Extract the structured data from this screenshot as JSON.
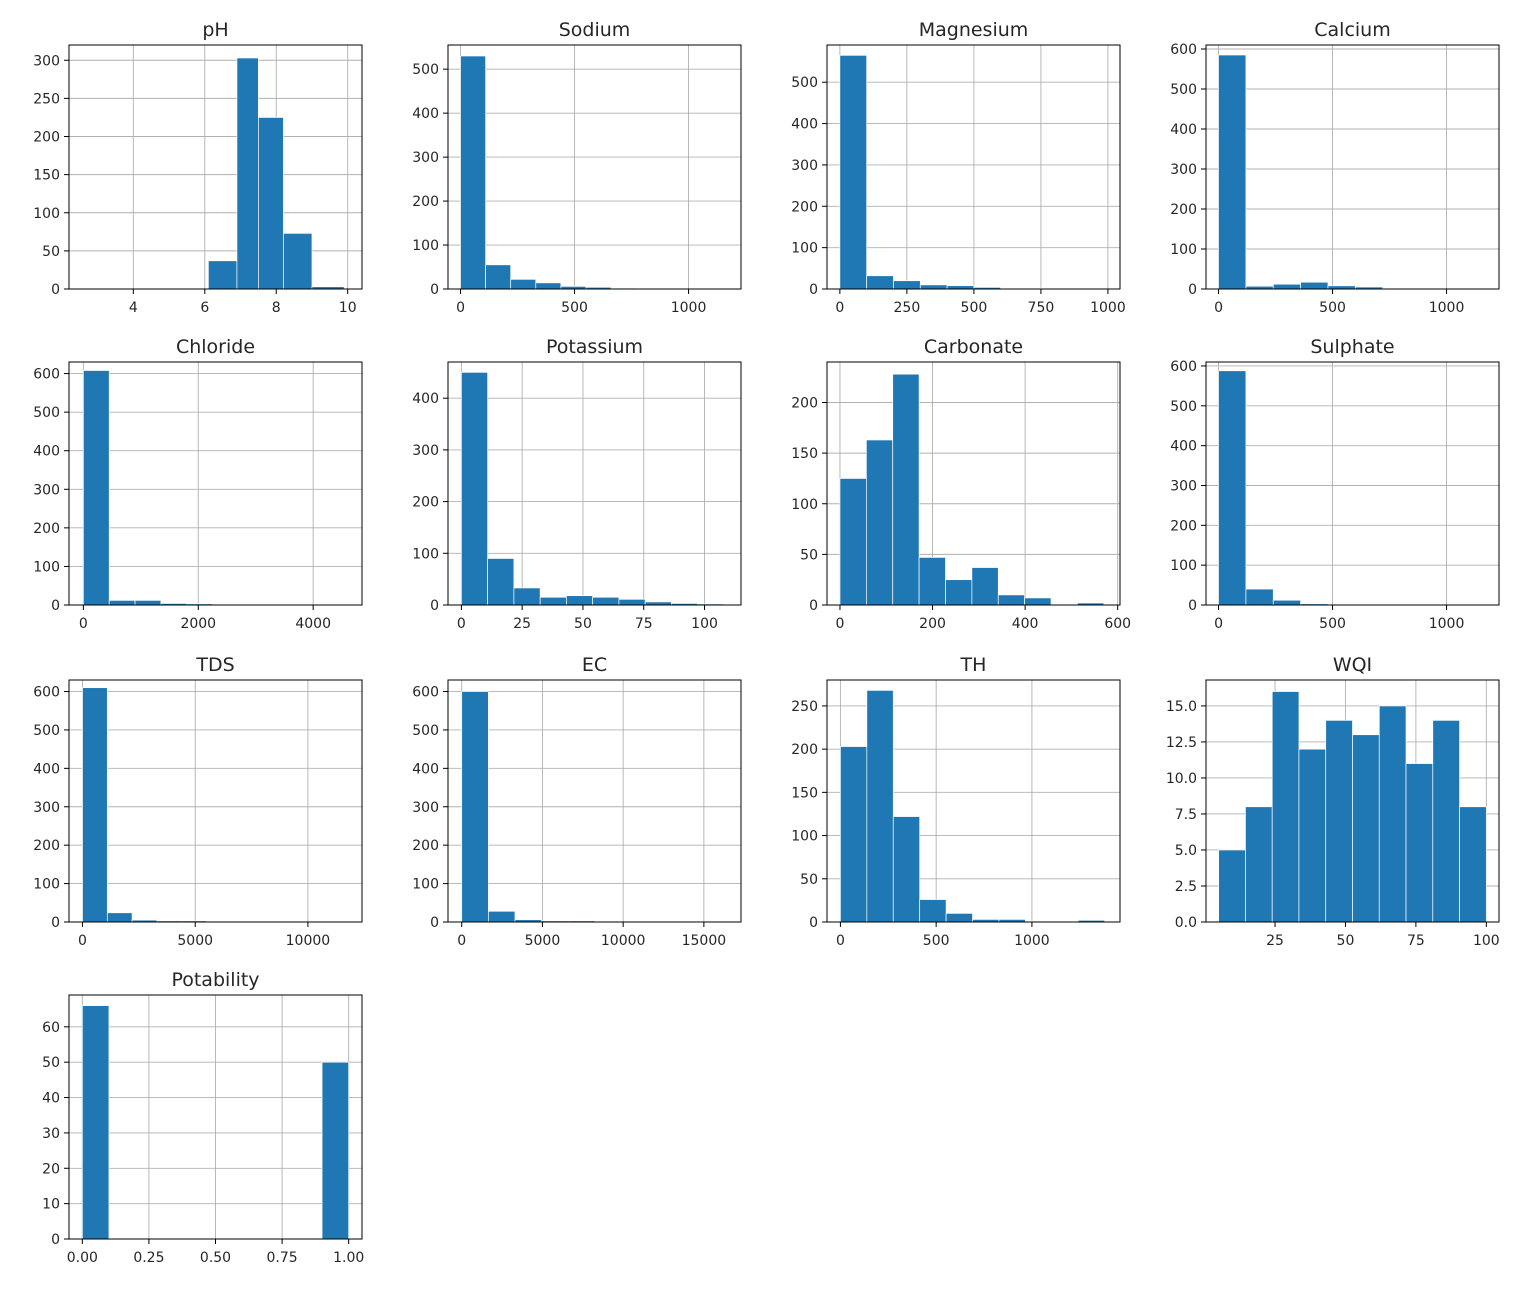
{
  "figure": {
    "bar_color": "#1f77b4",
    "edge_color": "#ffffff",
    "grid_color": "#b0b0b0",
    "frame_color": "#000000",
    "grid": true,
    "layout": "4 columns x 4 rows"
  },
  "chart_data": [
    {
      "type": "bar",
      "title": "pH",
      "bins": [
        [
          6.1,
          6.9
        ],
        [
          6.9,
          7.5
        ],
        [
          7.5,
          8.2
        ],
        [
          8.2,
          9.0
        ],
        [
          9.0,
          9.9
        ]
      ],
      "values": [
        37,
        303,
        225,
        73,
        3
      ],
      "xlim": [
        2.2,
        10.4
      ],
      "ylim": [
        0,
        320
      ],
      "xticks": [
        4,
        6,
        8,
        10
      ],
      "xtick_labels": [
        "4",
        "6",
        "8",
        "10"
      ],
      "yticks": [
        0,
        50,
        100,
        150,
        200,
        250,
        300
      ],
      "ytick_labels": [
        "0",
        "50",
        "100",
        "150",
        "200",
        "250",
        "300"
      ]
    },
    {
      "type": "bar",
      "title": "Sodium",
      "bins": [
        [
          0,
          110
        ],
        [
          110,
          220
        ],
        [
          220,
          330
        ],
        [
          330,
          440
        ],
        [
          440,
          550
        ],
        [
          550,
          660
        ],
        [
          660,
          770
        ],
        [
          770,
          880
        ]
      ],
      "values": [
        530,
        55,
        22,
        14,
        6,
        4,
        2,
        1
      ],
      "xlim": [
        -55,
        1230
      ],
      "ylim": [
        0,
        555
      ],
      "xticks": [
        0,
        500,
        1000
      ],
      "xtick_labels": [
        "0",
        "500",
        "1000"
      ],
      "yticks": [
        0,
        100,
        200,
        300,
        400,
        500
      ],
      "ytick_labels": [
        "0",
        "100",
        "200",
        "300",
        "400",
        "500"
      ]
    },
    {
      "type": "bar",
      "title": "Magnesium",
      "bins": [
        [
          0,
          100
        ],
        [
          100,
          200
        ],
        [
          200,
          300
        ],
        [
          300,
          400
        ],
        [
          400,
          500
        ],
        [
          500,
          600
        ],
        [
          600,
          700
        ],
        [
          700,
          800
        ]
      ],
      "values": [
        565,
        32,
        20,
        10,
        8,
        4,
        2,
        2
      ],
      "xlim": [
        -48,
        1045
      ],
      "ylim": [
        0,
        590
      ],
      "xticks": [
        0,
        250,
        500,
        750,
        1000
      ],
      "xtick_labels": [
        "0",
        "250",
        "500",
        "750",
        "1000"
      ],
      "yticks": [
        0,
        100,
        200,
        300,
        400,
        500
      ],
      "ytick_labels": [
        "0",
        "100",
        "200",
        "300",
        "400",
        "500"
      ]
    },
    {
      "type": "bar",
      "title": "Calcium",
      "bins": [
        [
          0,
          120
        ],
        [
          120,
          240
        ],
        [
          240,
          360
        ],
        [
          360,
          480
        ],
        [
          480,
          600
        ],
        [
          600,
          720
        ],
        [
          720,
          820
        ]
      ],
      "values": [
        585,
        7,
        12,
        17,
        8,
        5,
        2
      ],
      "xlim": [
        -55,
        1230
      ],
      "ylim": [
        0,
        610
      ],
      "xticks": [
        0,
        500,
        1000
      ],
      "xtick_labels": [
        "0",
        "500",
        "1000"
      ],
      "yticks": [
        0,
        100,
        200,
        300,
        400,
        500,
        600
      ],
      "ytick_labels": [
        "0",
        "100",
        "200",
        "300",
        "400",
        "500",
        "600"
      ]
    },
    {
      "type": "bar",
      "title": "Chloride",
      "bins": [
        [
          0,
          450
        ],
        [
          450,
          900
        ],
        [
          900,
          1350
        ],
        [
          1350,
          1800
        ],
        [
          1800,
          2250
        ]
      ],
      "values": [
        608,
        12,
        12,
        4,
        3
      ],
      "xlim": [
        -250,
        4850
      ],
      "ylim": [
        0,
        630
      ],
      "xticks": [
        0,
        2000,
        4000
      ],
      "xtick_labels": [
        "0",
        "2000",
        "4000"
      ],
      "yticks": [
        0,
        100,
        200,
        300,
        400,
        500,
        600
      ],
      "ytick_labels": [
        "0",
        "100",
        "200",
        "300",
        "400",
        "500",
        "600"
      ]
    },
    {
      "type": "bar",
      "title": "Potassium",
      "bins": [
        [
          0,
          10.8
        ],
        [
          10.8,
          21.6
        ],
        [
          21.6,
          32.4
        ],
        [
          32.4,
          43.2
        ],
        [
          43.2,
          54
        ],
        [
          54,
          64.8
        ],
        [
          64.8,
          75.6
        ],
        [
          75.6,
          86.4
        ],
        [
          86.4,
          97.2
        ],
        [
          97.2,
          108
        ]
      ],
      "values": [
        450,
        90,
        33,
        15,
        18,
        15,
        11,
        6,
        3,
        2
      ],
      "xlim": [
        -5.5,
        115
      ],
      "ylim": [
        0,
        470
      ],
      "xticks": [
        0,
        25,
        50,
        75,
        100
      ],
      "xtick_labels": [
        "0",
        "25",
        "50",
        "75",
        "100"
      ],
      "yticks": [
        0,
        100,
        200,
        300,
        400
      ],
      "ytick_labels": [
        "0",
        "100",
        "200",
        "300",
        "400"
      ]
    },
    {
      "type": "bar",
      "title": "Carbonate",
      "bins": [
        [
          0,
          57
        ],
        [
          57,
          114
        ],
        [
          114,
          171
        ],
        [
          171,
          228
        ],
        [
          228,
          285
        ],
        [
          285,
          342
        ],
        [
          342,
          399
        ],
        [
          399,
          456
        ],
        [
          456,
          513
        ],
        [
          513,
          570
        ]
      ],
      "values": [
        125,
        163,
        228,
        47,
        25,
        37,
        10,
        7,
        0,
        2
      ],
      "xlim": [
        -28,
        605
      ],
      "ylim": [
        0,
        240
      ],
      "xticks": [
        0,
        200,
        400,
        600
      ],
      "xtick_labels": [
        "0",
        "200",
        "400",
        "600"
      ],
      "yticks": [
        0,
        50,
        100,
        150,
        200
      ],
      "ytick_labels": [
        "0",
        "50",
        "100",
        "150",
        "200"
      ]
    },
    {
      "type": "bar",
      "title": "Sulphate",
      "bins": [
        [
          0,
          120
        ],
        [
          120,
          240
        ],
        [
          240,
          360
        ],
        [
          360,
          480
        ]
      ],
      "values": [
        588,
        40,
        12,
        3
      ],
      "xlim": [
        -55,
        1230
      ],
      "ylim": [
        0,
        610
      ],
      "xticks": [
        0,
        500,
        1000
      ],
      "xtick_labels": [
        "0",
        "500",
        "1000"
      ],
      "yticks": [
        0,
        100,
        200,
        300,
        400,
        500,
        600
      ],
      "ytick_labels": [
        "0",
        "100",
        "200",
        "300",
        "400",
        "500",
        "600"
      ]
    },
    {
      "type": "bar",
      "title": "TDS",
      "bins": [
        [
          0,
          1100
        ],
        [
          1100,
          2200
        ],
        [
          2200,
          3300
        ],
        [
          3300,
          4400
        ],
        [
          4400,
          5500
        ],
        [
          5500,
          6600
        ]
      ],
      "values": [
        610,
        24,
        5,
        3,
        3,
        2
      ],
      "xlim": [
        -600,
        12400
      ],
      "ylim": [
        0,
        630
      ],
      "xticks": [
        0,
        5000,
        10000
      ],
      "xtick_labels": [
        "0",
        "5000",
        "10000"
      ],
      "yticks": [
        0,
        100,
        200,
        300,
        400,
        500,
        600
      ],
      "ytick_labels": [
        "0",
        "100",
        "200",
        "300",
        "400",
        "500",
        "600"
      ]
    },
    {
      "type": "bar",
      "title": "EC",
      "bins": [
        [
          0,
          1650
        ],
        [
          1650,
          3300
        ],
        [
          3300,
          4950
        ],
        [
          4950,
          6600
        ],
        [
          6600,
          8250
        ]
      ],
      "values": [
        600,
        28,
        6,
        3,
        3
      ],
      "xlim": [
        -850,
        17300
      ],
      "ylim": [
        0,
        630
      ],
      "xticks": [
        0,
        5000,
        10000,
        15000
      ],
      "xtick_labels": [
        "0",
        "5000",
        "10000",
        "15000"
      ],
      "yticks": [
        0,
        100,
        200,
        300,
        400,
        500,
        600
      ],
      "ytick_labels": [
        "0",
        "100",
        "200",
        "300",
        "400",
        "500",
        "600"
      ]
    },
    {
      "type": "bar",
      "title": "TH",
      "bins": [
        [
          0,
          138
        ],
        [
          138,
          276
        ],
        [
          276,
          414
        ],
        [
          414,
          552
        ],
        [
          552,
          690
        ],
        [
          690,
          828
        ],
        [
          828,
          966
        ],
        [
          966,
          1104
        ],
        [
          1104,
          1242
        ],
        [
          1242,
          1380
        ]
      ],
      "values": [
        203,
        268,
        122,
        26,
        10,
        3,
        3,
        1,
        0,
        2
      ],
      "xlim": [
        -70,
        1460
      ],
      "ylim": [
        0,
        280
      ],
      "xticks": [
        0,
        500,
        1000
      ],
      "xtick_labels": [
        "0",
        "500",
        "1000"
      ],
      "yticks": [
        0,
        50,
        100,
        150,
        200,
        250
      ],
      "ytick_labels": [
        "0",
        "50",
        "100",
        "150",
        "200",
        "250"
      ]
    },
    {
      "type": "bar",
      "title": "WQI",
      "bins": [
        [
          5,
          14.5
        ],
        [
          14.5,
          24
        ],
        [
          24,
          33.5
        ],
        [
          33.5,
          43
        ],
        [
          43,
          52.5
        ],
        [
          52.5,
          62
        ],
        [
          62,
          71.5
        ],
        [
          71.5,
          81
        ],
        [
          81,
          90.5
        ],
        [
          90.5,
          100
        ]
      ],
      "values": [
        5,
        8,
        16,
        12,
        14,
        13,
        15,
        11,
        14,
        8
      ],
      "xlim": [
        0.5,
        104.5
      ],
      "ylim": [
        0,
        16.8
      ],
      "xticks": [
        25,
        50,
        75,
        100
      ],
      "xtick_labels": [
        "25",
        "50",
        "75",
        "100"
      ],
      "yticks": [
        0,
        2.5,
        5,
        7.5,
        10,
        12.5,
        15
      ],
      "ytick_labels": [
        "0.0",
        "2.5",
        "5.0",
        "7.5",
        "10.0",
        "12.5",
        "15.0"
      ]
    },
    {
      "type": "bar",
      "title": "Potability",
      "bins": [
        [
          0,
          0.1
        ],
        [
          0.9,
          1.0
        ]
      ],
      "values": [
        66,
        50
      ],
      "xlim": [
        -0.05,
        1.05
      ],
      "ylim": [
        0,
        69
      ],
      "xticks": [
        0,
        0.25,
        0.5,
        0.75,
        1
      ],
      "xtick_labels": [
        "0.00",
        "0.25",
        "0.50",
        "0.75",
        "1.00"
      ],
      "yticks": [
        0,
        10,
        20,
        30,
        40,
        50,
        60
      ],
      "ytick_labels": [
        "0",
        "10",
        "20",
        "30",
        "40",
        "50",
        "60"
      ]
    }
  ]
}
